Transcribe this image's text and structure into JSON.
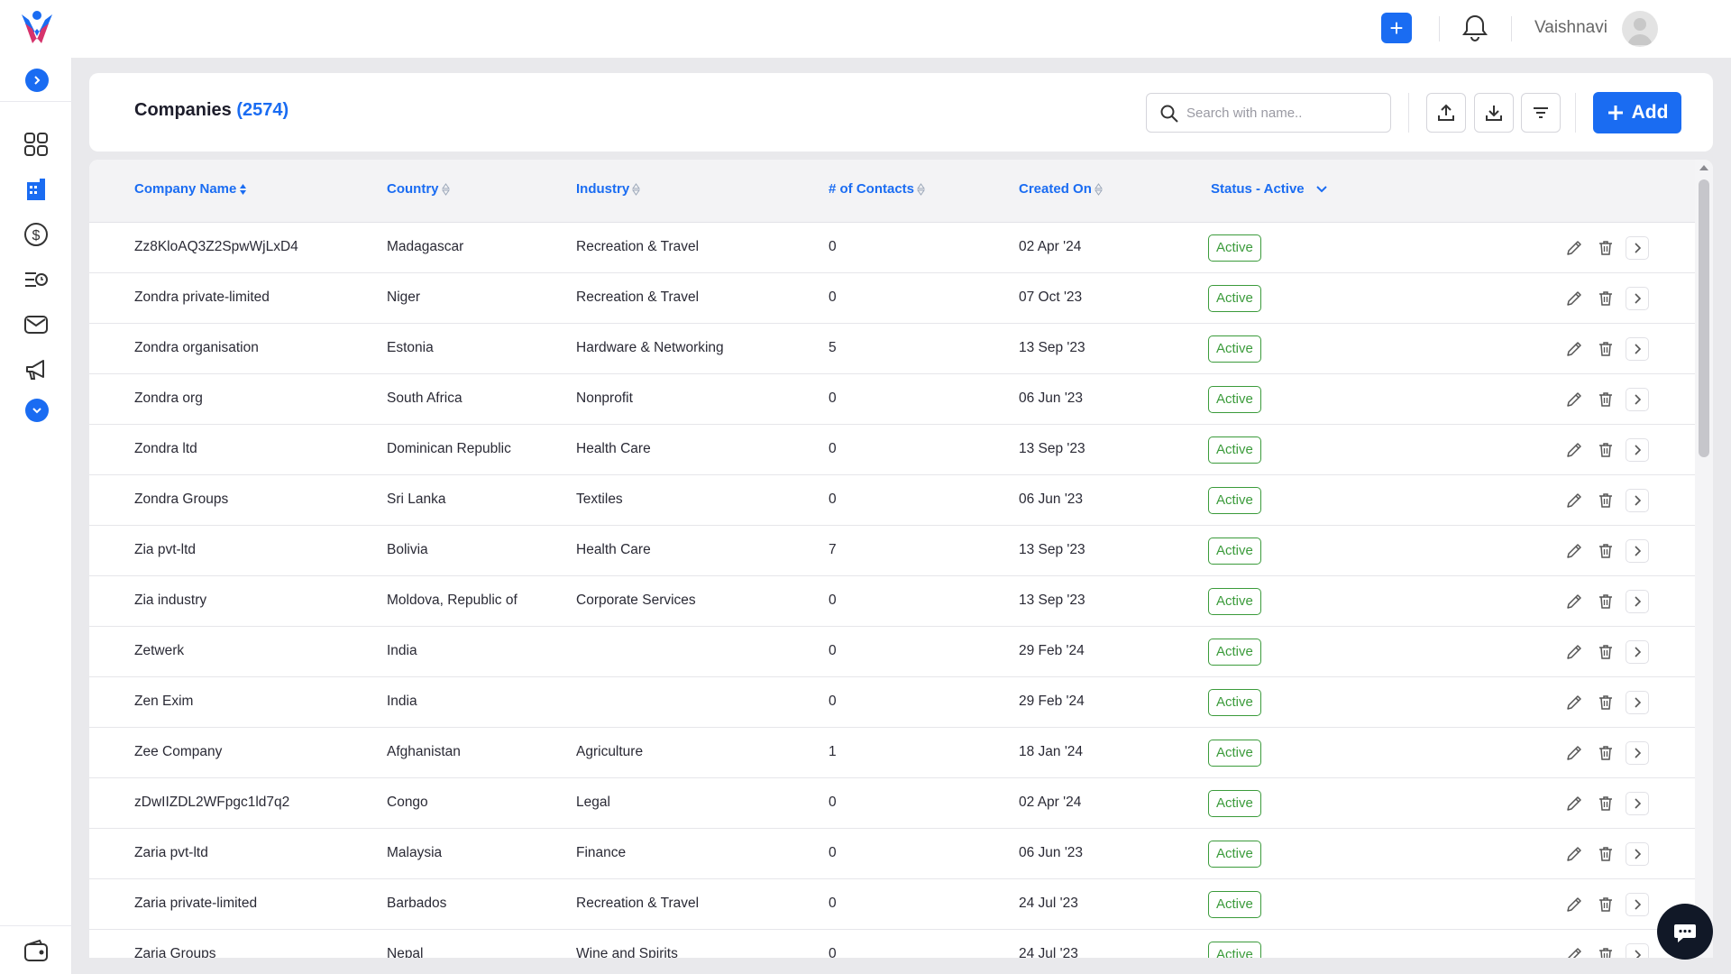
{
  "topbar": {
    "user_name": "Vaishnavi"
  },
  "sidebar": {
    "items": [
      {
        "name": "dashboard"
      },
      {
        "name": "companies"
      },
      {
        "name": "deals"
      },
      {
        "name": "tasks"
      },
      {
        "name": "mail"
      },
      {
        "name": "campaigns"
      }
    ]
  },
  "header": {
    "title": "Companies",
    "count": "(2574)",
    "search_placeholder": "Search with name..",
    "add_label": "Add"
  },
  "table": {
    "columns": [
      "Company Name",
      "Country",
      "Industry",
      "# of Contacts",
      "Created On"
    ],
    "status_filter": "Status - Active",
    "rows": [
      {
        "name": "Zz8KloAQ3Z2SpwWjLxD4",
        "country": "Madagascar",
        "industry": "Recreation & Travel",
        "contacts": "0",
        "created": "02 Apr '24",
        "status": "Active"
      },
      {
        "name": "Zondra private-limited",
        "country": "Niger",
        "industry": "Recreation & Travel",
        "contacts": "0",
        "created": "07 Oct '23",
        "status": "Active"
      },
      {
        "name": "Zondra organisation",
        "country": "Estonia",
        "industry": "Hardware & Networking",
        "contacts": "5",
        "created": "13 Sep '23",
        "status": "Active"
      },
      {
        "name": "Zondra org",
        "country": "South Africa",
        "industry": "Nonprofit",
        "contacts": "0",
        "created": "06 Jun '23",
        "status": "Active"
      },
      {
        "name": "Zondra ltd",
        "country": "Dominican Republic",
        "industry": "Health Care",
        "contacts": "0",
        "created": "13 Sep '23",
        "status": "Active"
      },
      {
        "name": "Zondra Groups",
        "country": "Sri Lanka",
        "industry": "Textiles",
        "contacts": "0",
        "created": "06 Jun '23",
        "status": "Active"
      },
      {
        "name": "Zia pvt-ltd",
        "country": "Bolivia",
        "industry": "Health Care",
        "contacts": "7",
        "created": "13 Sep '23",
        "status": "Active"
      },
      {
        "name": "Zia industry",
        "country": "Moldova, Republic of",
        "industry": "Corporate Services",
        "contacts": "0",
        "created": "13 Sep '23",
        "status": "Active"
      },
      {
        "name": "Zetwerk",
        "country": "India",
        "industry": "",
        "contacts": "0",
        "created": "29 Feb '24",
        "status": "Active"
      },
      {
        "name": "Zen Exim",
        "country": "India",
        "industry": "",
        "contacts": "0",
        "created": "29 Feb '24",
        "status": "Active"
      },
      {
        "name": "Zee Company",
        "country": "Afghanistan",
        "industry": "Agriculture",
        "contacts": "1",
        "created": "18 Jan '24",
        "status": "Active"
      },
      {
        "name": "zDwIIZDL2WFpgc1ld7q2",
        "country": "Congo",
        "industry": "Legal",
        "contacts": "0",
        "created": "02 Apr '24",
        "status": "Active"
      },
      {
        "name": "Zaria pvt-ltd",
        "country": "Malaysia",
        "industry": "Finance",
        "contacts": "0",
        "created": "06 Jun '23",
        "status": "Active"
      },
      {
        "name": "Zaria private-limited",
        "country": "Barbados",
        "industry": "Recreation & Travel",
        "contacts": "0",
        "created": "24 Jul '23",
        "status": "Active"
      },
      {
        "name": "Zaria Groups",
        "country": "Nepal",
        "industry": "Wine and Spirits",
        "contacts": "0",
        "created": "24 Jul '23",
        "status": "Active"
      }
    ]
  },
  "colors": {
    "primary": "#1a6cf2",
    "status_active": "#3b9b3b"
  }
}
